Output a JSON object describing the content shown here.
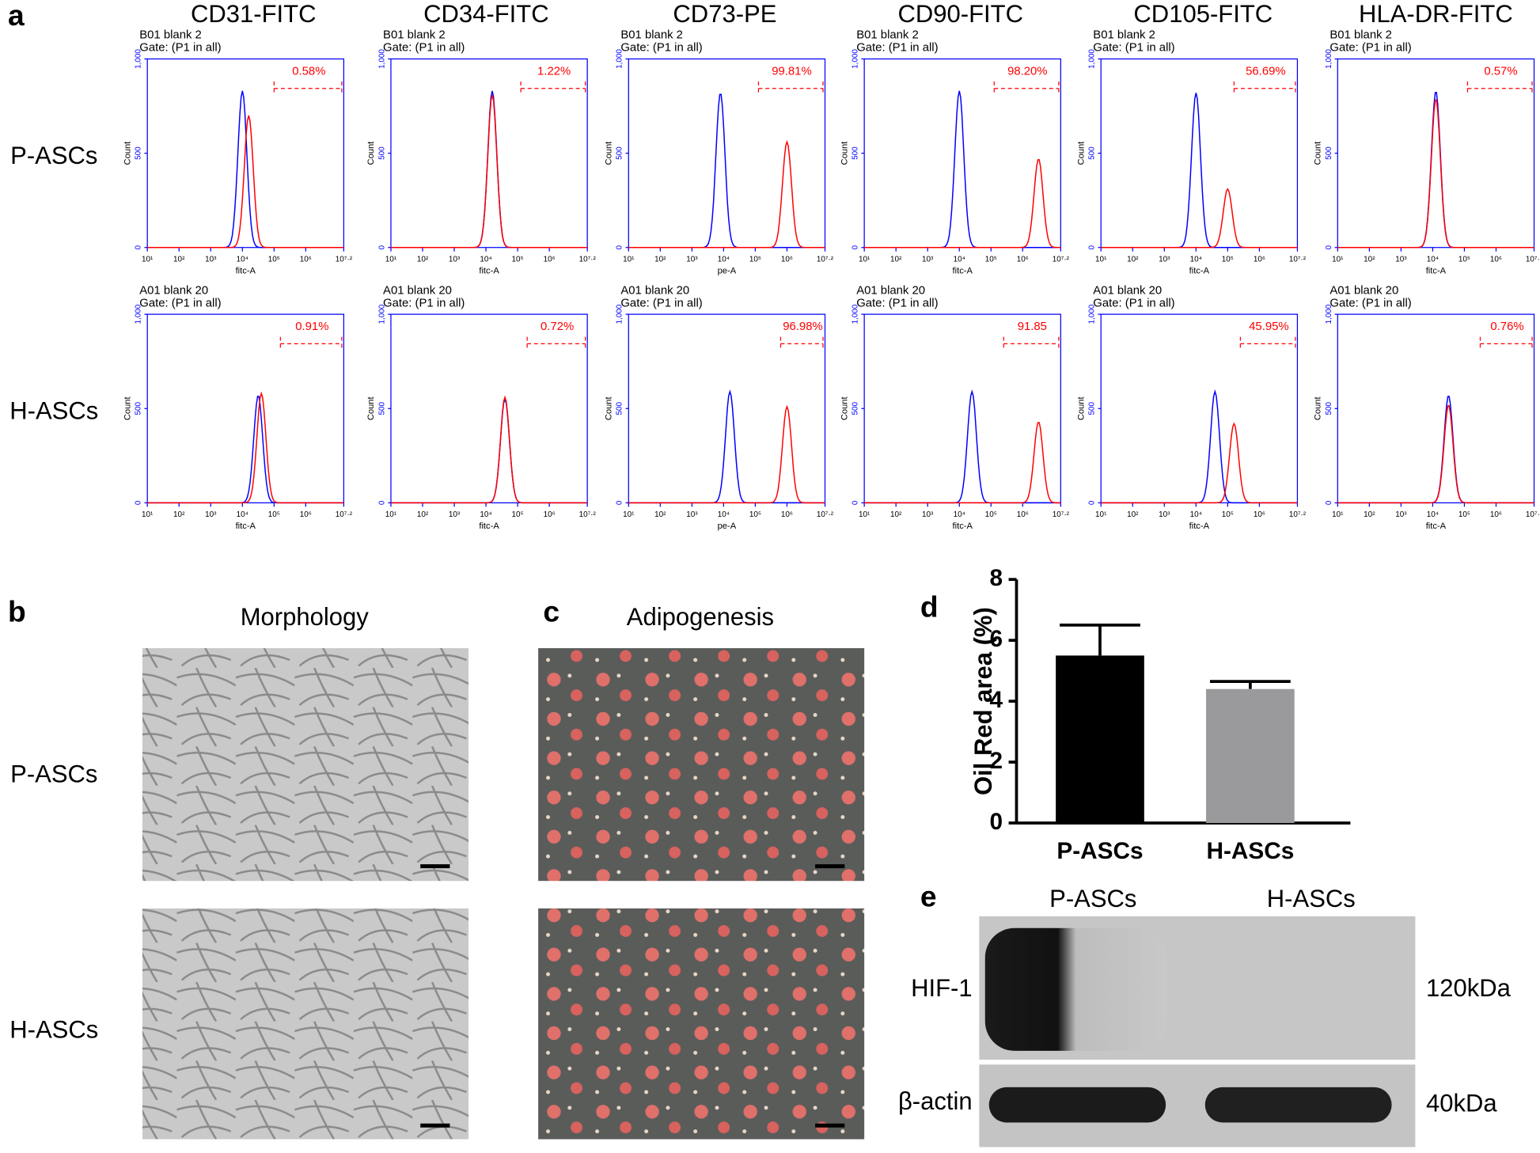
{
  "figure": {
    "panel_labels": [
      "a",
      "b",
      "c",
      "d",
      "e"
    ]
  },
  "flow": {
    "columns": [
      "CD31-FITC",
      "CD34-FITC",
      "CD73-PE",
      "CD90-FITC",
      "CD105-FITC",
      "HLA-DR-FITC"
    ],
    "y_label": "Count",
    "xlim": [
      1,
      7.2
    ],
    "xticks": [
      {
        "value": 1,
        "label": "10¹"
      },
      {
        "value": 2,
        "label": "10²"
      },
      {
        "value": 3,
        "label": "10³"
      },
      {
        "value": 4,
        "label": "10⁴"
      },
      {
        "value": 5,
        "label": "10⁵"
      },
      {
        "value": 6,
        "label": "10⁶"
      },
      {
        "value": 7.2,
        "label": "10⁷·²"
      }
    ],
    "ylim": [
      0,
      1000
    ],
    "yticks": [
      0,
      500,
      {
        "value": 1000,
        "label": "1,000"
      }
    ],
    "rows": [
      {
        "label": "P-ASCs",
        "sample": "B01 blank 2",
        "gate_text": "Gate: (P1 in all)",
        "cells": [
          {
            "x_label": "fitc-A",
            "percent": "0.58%",
            "gate_start": 5.0,
            "control": {
              "mode": 4.0,
              "peak": 830
            },
            "stained": {
              "mode": 4.2,
              "peak": 700
            }
          },
          {
            "x_label": "fitc-A",
            "percent": "1.22%",
            "gate_start": 5.1,
            "control": {
              "mode": 4.2,
              "peak": 830
            },
            "stained": {
              "mode": 4.2,
              "peak": 810
            }
          },
          {
            "x_label": "pe-A",
            "percent": "99.81%",
            "gate_start": 5.1,
            "control": {
              "mode": 3.9,
              "peak": 820
            },
            "stained": {
              "mode": 6.0,
              "peak": 560
            }
          },
          {
            "x_label": "fitc-A",
            "percent": "98.20%",
            "gate_start": 5.1,
            "control": {
              "mode": 4.0,
              "peak": 830
            },
            "stained": {
              "mode": 6.5,
              "peak": 470
            }
          },
          {
            "x_label": "fitc-A",
            "percent": "56.69%",
            "gate_start": 5.2,
            "control": {
              "mode": 4.0,
              "peak": 820
            },
            "stained": {
              "mode": 5.0,
              "peak": 310
            }
          },
          {
            "x_label": "fitc-A",
            "percent": "0.57%",
            "gate_start": 5.1,
            "control": {
              "mode": 4.1,
              "peak": 830
            },
            "stained": {
              "mode": 4.1,
              "peak": 790
            }
          }
        ]
      },
      {
        "label": "H-ASCs",
        "sample": "A01 blank 20",
        "gate_text": "Gate: (P1 in all)",
        "cells": [
          {
            "x_label": "fitc-A",
            "percent": "0.91%",
            "gate_start": 5.2,
            "control": {
              "mode": 4.5,
              "peak": 570
            },
            "stained": {
              "mode": 4.6,
              "peak": 580
            }
          },
          {
            "x_label": "fitc-A",
            "percent": "0.72%",
            "gate_start": 5.3,
            "control": {
              "mode": 4.6,
              "peak": 550
            },
            "stained": {
              "mode": 4.6,
              "peak": 560
            }
          },
          {
            "x_label": "pe-A",
            "percent": "96.98%",
            "gate_start": 5.8,
            "control": {
              "mode": 4.2,
              "peak": 590
            },
            "stained": {
              "mode": 6.0,
              "peak": 510
            }
          },
          {
            "x_label": "fitc-A",
            "percent": "91.85",
            "gate_start": 5.4,
            "control": {
              "mode": 4.4,
              "peak": 590
            },
            "stained": {
              "mode": 6.5,
              "peak": 430
            }
          },
          {
            "x_label": "fitc-A",
            "percent": "45.95%",
            "gate_start": 5.4,
            "control": {
              "mode": 4.6,
              "peak": 590
            },
            "stained": {
              "mode": 5.2,
              "peak": 420
            }
          },
          {
            "x_label": "fitc-A",
            "percent": "0.76%",
            "gate_start": 5.5,
            "control": {
              "mode": 4.5,
              "peak": 570
            },
            "stained": {
              "mode": 4.5,
              "peak": 520
            }
          }
        ]
      }
    ]
  },
  "micrographs": {
    "columns": [
      "Morphology",
      "Adipogenesis"
    ],
    "rows": [
      "P-ASCs",
      "H-ASCs"
    ]
  },
  "chart_data": {
    "type": "bar",
    "y_label": "Oil Red area (%)",
    "categories": [
      "P-ASCs",
      "H-ASCs"
    ],
    "values": [
      5.5,
      4.4
    ],
    "errors": [
      1.0,
      0.25
    ],
    "colors": [
      "#000000",
      "#9a9a9c"
    ],
    "ylim": [
      0,
      8
    ],
    "yticks": [
      0,
      2,
      4,
      6,
      8
    ]
  },
  "blot": {
    "lanes": [
      "P-ASCs",
      "H-ASCs"
    ],
    "proteins": [
      "HIF-1",
      "β-actin"
    ],
    "sizes": [
      "120kDa",
      "40kDa"
    ]
  }
}
